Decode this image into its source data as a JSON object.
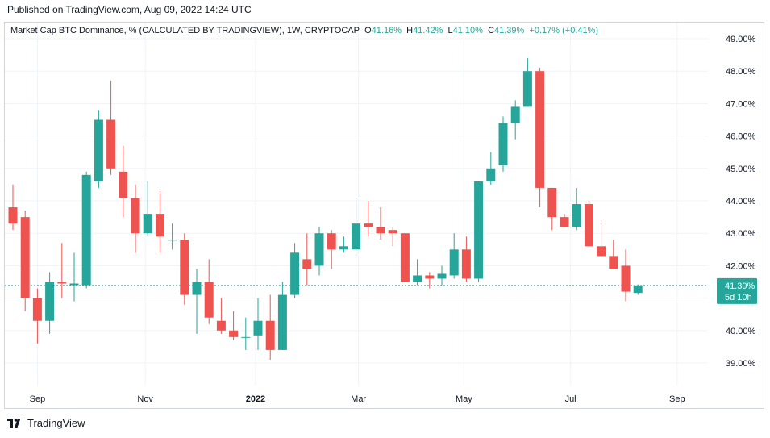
{
  "header": {
    "published": "Published on TradingView.com, Aug 09, 2022 14:24 UTC"
  },
  "legend": {
    "title": "Market Cap BTC Dominance, % (CALCULATED BY TRADINGVIEW), 1W, CRYPTOCAP",
    "o_label": "O",
    "o_value": "41.16%",
    "h_label": "H",
    "h_value": "41.42%",
    "l_label": "L",
    "l_value": "41.10%",
    "c_label": "C",
    "c_value": "41.39%",
    "change": "+0.17% (+0.41%)"
  },
  "footer": {
    "brand": "TradingView"
  },
  "price_tag": {
    "value": "41.39%",
    "countdown": "5d 10h"
  },
  "colors": {
    "up": "#26a69a",
    "down": "#ef5350",
    "grid": "#f0f3fa",
    "axis_text": "#131722",
    "tag": "#26a69a"
  },
  "chart_data": {
    "type": "candlestick",
    "title": "Market Cap BTC Dominance, % (CALCULATED BY TRADINGVIEW), 1W, CRYPTOCAP",
    "interval": "1W",
    "y_unit": "%",
    "ylim": [
      38.4,
      49.4
    ],
    "y_ticks": [
      "39.00%",
      "40.00%",
      "41.00%",
      "42.00%",
      "43.00%",
      "44.00%",
      "45.00%",
      "46.00%",
      "47.00%",
      "48.00%",
      "49.00%"
    ],
    "x_ticks": [
      {
        "label": "Sep",
        "index": 2.0,
        "bold": false
      },
      {
        "label": "Nov",
        "index": 10.8,
        "bold": false
      },
      {
        "label": "2022",
        "index": 19.8,
        "bold": true
      },
      {
        "label": "Mar",
        "index": 28.2,
        "bold": false
      },
      {
        "label": "May",
        "index": 36.8,
        "bold": false
      },
      {
        "label": "Jul",
        "index": 45.5,
        "bold": false
      },
      {
        "label": "Sep",
        "index": 54.2,
        "bold": false
      }
    ],
    "last_price": 41.39,
    "grid": true,
    "candles": [
      {
        "o": 43.8,
        "h": 44.5,
        "l": 43.1,
        "c": 43.3
      },
      {
        "o": 43.5,
        "h": 43.7,
        "l": 40.6,
        "c": 41.0
      },
      {
        "o": 41.0,
        "h": 41.3,
        "l": 39.6,
        "c": 40.3
      },
      {
        "o": 40.3,
        "h": 41.8,
        "l": 39.9,
        "c": 41.5
      },
      {
        "o": 41.5,
        "h": 42.7,
        "l": 41.0,
        "c": 41.45
      },
      {
        "o": 41.4,
        "h": 42.4,
        "l": 40.9,
        "c": 41.45
      },
      {
        "o": 41.4,
        "h": 44.9,
        "l": 41.3,
        "c": 44.8
      },
      {
        "o": 44.6,
        "h": 46.8,
        "l": 44.4,
        "c": 46.5
      },
      {
        "o": 46.5,
        "h": 47.7,
        "l": 44.8,
        "c": 45.0
      },
      {
        "o": 44.9,
        "h": 45.7,
        "l": 43.5,
        "c": 44.1
      },
      {
        "o": 44.1,
        "h": 44.5,
        "l": 42.4,
        "c": 43.0
      },
      {
        "o": 43.0,
        "h": 44.6,
        "l": 42.9,
        "c": 43.6
      },
      {
        "o": 43.6,
        "h": 44.3,
        "l": 42.4,
        "c": 42.9
      },
      {
        "o": 42.8,
        "h": 43.3,
        "l": 42.5,
        "c": 42.8
      },
      {
        "o": 42.8,
        "h": 43.0,
        "l": 40.8,
        "c": 41.1
      },
      {
        "o": 41.1,
        "h": 41.9,
        "l": 39.9,
        "c": 41.5
      },
      {
        "o": 41.5,
        "h": 42.2,
        "l": 40.2,
        "c": 40.4
      },
      {
        "o": 40.3,
        "h": 41.0,
        "l": 39.9,
        "c": 40.0
      },
      {
        "o": 40.0,
        "h": 40.6,
        "l": 39.7,
        "c": 39.8
      },
      {
        "o": 39.8,
        "h": 40.4,
        "l": 39.4,
        "c": 39.8
      },
      {
        "o": 39.85,
        "h": 41.0,
        "l": 39.4,
        "c": 40.3
      },
      {
        "o": 40.3,
        "h": 41.1,
        "l": 39.1,
        "c": 39.4
      },
      {
        "o": 39.4,
        "h": 41.5,
        "l": 39.4,
        "c": 41.1
      },
      {
        "o": 41.1,
        "h": 42.7,
        "l": 41.0,
        "c": 42.4
      },
      {
        "o": 42.2,
        "h": 43.0,
        "l": 41.4,
        "c": 41.9
      },
      {
        "o": 42.0,
        "h": 43.2,
        "l": 41.7,
        "c": 43.0
      },
      {
        "o": 43.0,
        "h": 43.1,
        "l": 41.9,
        "c": 42.5
      },
      {
        "o": 42.5,
        "h": 42.9,
        "l": 42.4,
        "c": 42.6
      },
      {
        "o": 42.5,
        "h": 44.1,
        "l": 42.3,
        "c": 43.3
      },
      {
        "o": 43.3,
        "h": 44.0,
        "l": 42.9,
        "c": 43.2
      },
      {
        "o": 43.2,
        "h": 43.8,
        "l": 42.8,
        "c": 43.0
      },
      {
        "o": 43.1,
        "h": 43.2,
        "l": 42.6,
        "c": 43.0
      },
      {
        "o": 43.0,
        "h": 43.0,
        "l": 41.5,
        "c": 41.5
      },
      {
        "o": 41.5,
        "h": 42.2,
        "l": 41.4,
        "c": 41.7
      },
      {
        "o": 41.7,
        "h": 41.8,
        "l": 41.3,
        "c": 41.6
      },
      {
        "o": 41.6,
        "h": 42.0,
        "l": 41.4,
        "c": 41.75
      },
      {
        "o": 41.7,
        "h": 43.0,
        "l": 41.6,
        "c": 42.5
      },
      {
        "o": 42.5,
        "h": 42.9,
        "l": 41.5,
        "c": 41.6
      },
      {
        "o": 41.6,
        "h": 44.6,
        "l": 41.5,
        "c": 44.6
      },
      {
        "o": 44.6,
        "h": 45.5,
        "l": 44.5,
        "c": 45.0
      },
      {
        "o": 45.1,
        "h": 46.6,
        "l": 44.9,
        "c": 46.4
      },
      {
        "o": 46.4,
        "h": 47.1,
        "l": 45.9,
        "c": 46.9
      },
      {
        "o": 46.9,
        "h": 48.4,
        "l": 46.9,
        "c": 48.0
      },
      {
        "o": 48.0,
        "h": 48.1,
        "l": 43.8,
        "c": 44.4
      },
      {
        "o": 44.4,
        "h": 44.4,
        "l": 43.1,
        "c": 43.5
      },
      {
        "o": 43.5,
        "h": 43.6,
        "l": 43.2,
        "c": 43.2
      },
      {
        "o": 43.2,
        "h": 44.4,
        "l": 43.1,
        "c": 43.9
      },
      {
        "o": 43.9,
        "h": 44.0,
        "l": 42.6,
        "c": 42.6
      },
      {
        "o": 42.6,
        "h": 43.4,
        "l": 42.4,
        "c": 42.3
      },
      {
        "o": 42.3,
        "h": 42.8,
        "l": 41.9,
        "c": 41.9
      },
      {
        "o": 42.0,
        "h": 42.5,
        "l": 40.9,
        "c": 41.2
      },
      {
        "o": 41.16,
        "h": 41.42,
        "l": 41.1,
        "c": 41.39
      }
    ]
  }
}
